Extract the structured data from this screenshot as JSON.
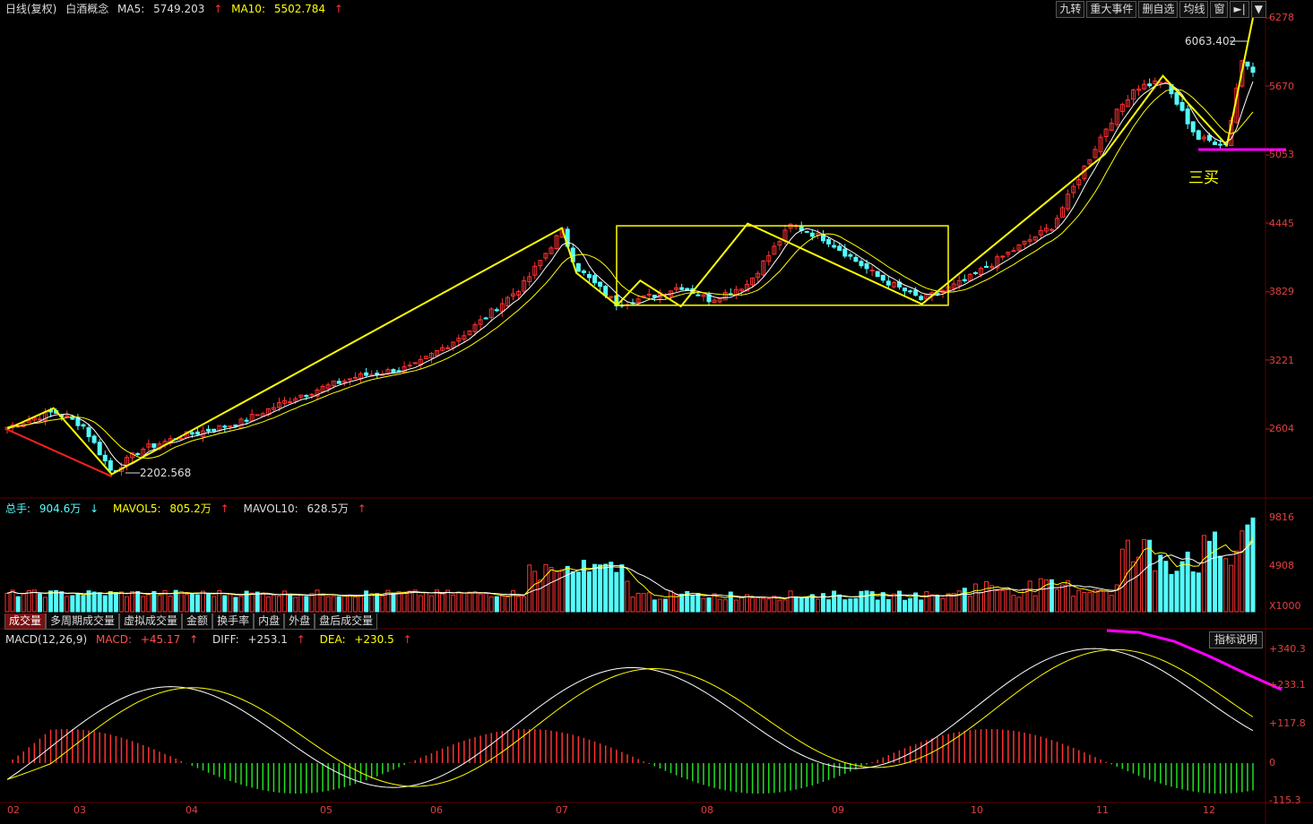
{
  "colors": {
    "up": "#ff3232",
    "down": "#54fcfc",
    "ma5": "#ffffff",
    "ma10": "#ffff00",
    "trend": "#ffff00",
    "pink": "#ff00ff",
    "red_line": "#ff2020",
    "grid": "#600000"
  },
  "header": {
    "name": "日线(复权)",
    "stock": "白酒概念",
    "ma5_label": "MA5:",
    "ma5_value": "5749.203",
    "ma10_label": "MA10:",
    "ma10_value": "5502.784"
  },
  "toolbar": [
    "九转",
    "重大事件",
    "删自选",
    "均线",
    "窗",
    "►|",
    "▼"
  ],
  "price_axis": [
    "6278",
    "5670",
    "5053",
    "4445",
    "3829",
    "3221",
    "2604"
  ],
  "annotations": {
    "high": "6063.402",
    "low": "2202.568",
    "note": "三买"
  },
  "volume": {
    "label": "总手:",
    "value": "904.6万",
    "mavol5_label": "MAVOL5:",
    "mavol5_value": "805.2万",
    "mavol10_label": "MAVOL10:",
    "mavol10_value": "628.5万",
    "axis": [
      "9816",
      "4908",
      "X1000"
    ]
  },
  "tabs": [
    "成交量",
    "多周期成交量",
    "虚拟成交量",
    "金额",
    "换手率",
    "内盘",
    "外盘",
    "盘后成交量"
  ],
  "macd": {
    "title": "MACD(12,26,9)",
    "macd_label": "MACD:",
    "macd_value": "+45.17",
    "diff_label": "DIFF:",
    "diff_value": "+253.1",
    "dea_label": "DEA:",
    "dea_value": "+230.5",
    "explain": "指标说明",
    "axis": [
      "+340.3",
      "+233.1",
      "+117.8",
      "0",
      "-115.3"
    ]
  },
  "x_axis": [
    "02",
    "03",
    "04",
    "05",
    "06",
    "07",
    "08",
    "09",
    "10",
    "11",
    "12"
  ],
  "chart_data": {
    "type": "candlestick",
    "title": "白酒概念 日线(复权)",
    "y_ticks": [
      2604,
      3221,
      3829,
      4445,
      5053,
      5670,
      6278
    ],
    "ylim": [
      2150,
      6300
    ],
    "x_months": [
      "02",
      "03",
      "04",
      "05",
      "06",
      "07",
      "08",
      "09",
      "10",
      "11",
      "12"
    ],
    "trend_pivots": [
      {
        "month": "01",
        "value": 2600
      },
      {
        "month": "02",
        "value": 2800
      },
      {
        "month": "03",
        "value": 2200
      },
      {
        "month": "07",
        "value": 4400
      },
      {
        "month": "07",
        "value": 3700
      },
      {
        "month": "07",
        "value": 3950
      },
      {
        "month": "08",
        "value": 3700
      },
      {
        "month": "08",
        "value": 4450
      },
      {
        "month": "09",
        "value": 3730
      },
      {
        "month": "11",
        "value": 5780
      },
      {
        "month": "12",
        "value": 5150
      },
      {
        "month": "12",
        "value": 6278
      }
    ],
    "box": {
      "top": 4420,
      "bottom": 3710
    },
    "volume_ticks": [
      4908,
      9816
    ],
    "macd_ticks": [
      -115.3,
      0,
      117.8,
      233.1,
      340.3
    ],
    "last": {
      "ma5": 5749.203,
      "ma10": 5502.784,
      "volume": 9046000,
      "mavol5": 8052000,
      "mavol10": 6285000,
      "macd": 45.17,
      "diff": 253.1,
      "dea": 230.5
    }
  }
}
